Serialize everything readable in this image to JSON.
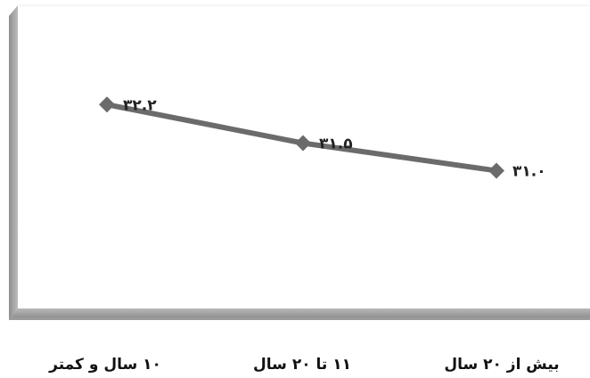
{
  "chart_data": {
    "type": "line",
    "categories": [
      "۱۰ سال و کمتر",
      "۱۱ تا ۲۰ سال",
      "بیش از ۲۰ سال"
    ],
    "values": [
      32.2,
      31.5,
      31.0
    ],
    "data_labels": [
      "۳۲.۲",
      "۳۱.۵",
      "۳۱.۰"
    ],
    "title": "",
    "xlabel": "",
    "ylabel": "",
    "ylim": [
      28.5,
      34
    ],
    "grid": false,
    "legend": "none",
    "colors": {
      "line": "#6b6b6b",
      "marker": "#6b6b6b",
      "wall_left": "#9a9a9a",
      "floor": "#a6a6a6",
      "floor_shadow": "#7c7c7c"
    }
  }
}
